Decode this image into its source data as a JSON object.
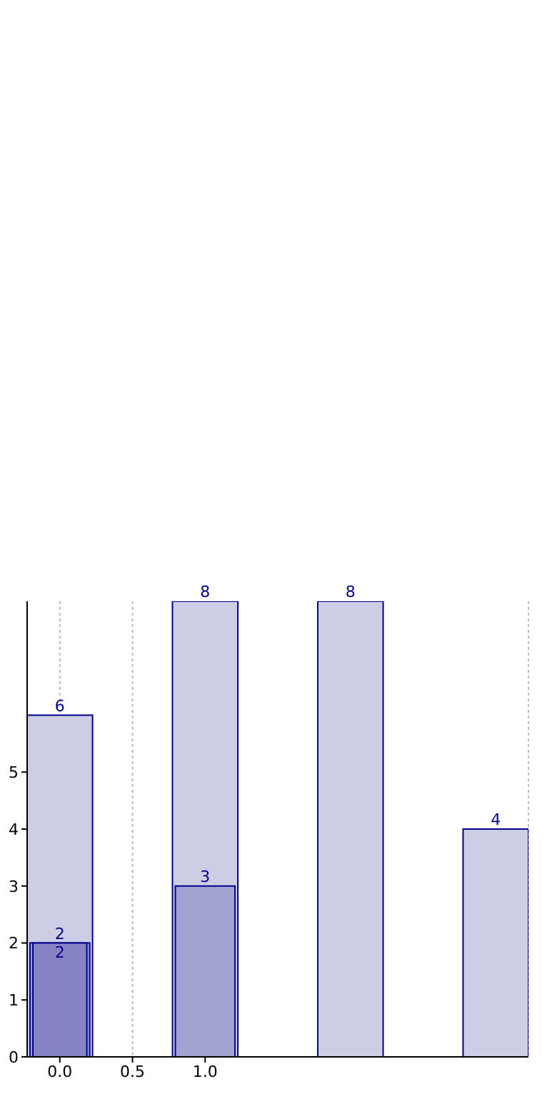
{
  "chart_data": {
    "type": "bar",
    "x": [
      0,
      1,
      2,
      3
    ],
    "series": [
      {
        "color": "#cdcde5",
        "values": [
          6,
          8,
          8,
          4
        ]
      },
      {
        "color": "#a3a3d1",
        "values": [
          2,
          3,
          null,
          null
        ]
      },
      {
        "color": "#8484c2",
        "values": [
          2,
          null,
          null,
          null
        ]
      }
    ],
    "xlim": [
      -0.225,
      3.225
    ],
    "xticks": [
      {
        "value": 0,
        "label": "0.0"
      },
      {
        "value": 0.5,
        "label": "0.5"
      },
      {
        "value": 1,
        "label": "1.0"
      }
    ],
    "ylim": [
      0,
      8
    ],
    "yticks": [
      0,
      1,
      2,
      3,
      4,
      5
    ],
    "grid": "x",
    "data_labels": true
  }
}
